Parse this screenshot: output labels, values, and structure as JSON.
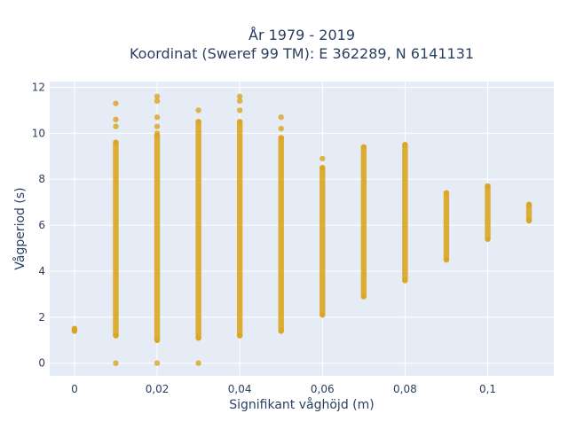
{
  "chart_data": {
    "type": "scatter",
    "title_lines": [
      "År 1979 - 2019",
      "Koordinat (Sweref 99 TM): E 362289, N 6141131"
    ],
    "xlabel": "Signifikant våghöjd (m)",
    "ylabel": "Vågperiod (s)",
    "xlim": [
      -0.006,
      0.116
    ],
    "ylim": [
      -0.55,
      12.25
    ],
    "x_ticks": [
      {
        "value": 0,
        "label": "0"
      },
      {
        "value": 0.02,
        "label": "0,02"
      },
      {
        "value": 0.04,
        "label": "0,04"
      },
      {
        "value": 0.06,
        "label": "0,06"
      },
      {
        "value": 0.08,
        "label": "0,08"
      },
      {
        "value": 0.1,
        "label": "0,1"
      }
    ],
    "y_ticks": [
      {
        "value": 0,
        "label": "0"
      },
      {
        "value": 2,
        "label": "2"
      },
      {
        "value": 4,
        "label": "4"
      },
      {
        "value": 6,
        "label": "6"
      },
      {
        "value": 8,
        "label": "8"
      },
      {
        "value": 10,
        "label": "10"
      },
      {
        "value": 12,
        "label": "12"
      }
    ],
    "grid": true,
    "colors": {
      "background": "#e5ecf6",
      "grid": "#ffffff",
      "marker": "#daa520"
    },
    "columns": [
      {
        "x": 0,
        "ymin": 1.4,
        "ymax": 1.5,
        "outliers": []
      },
      {
        "x": 0.01,
        "ymin": 1.2,
        "ymax": 9.6,
        "outliers": [
          0,
          10.3,
          10.6,
          11.3
        ]
      },
      {
        "x": 0.02,
        "ymin": 1.0,
        "ymax": 9.9,
        "outliers": [
          0,
          10.0,
          10.3,
          10.7,
          11.4,
          11.6
        ]
      },
      {
        "x": 0.03,
        "ymin": 1.1,
        "ymax": 10.5,
        "outliers": [
          0,
          11.0
        ]
      },
      {
        "x": 0.04,
        "ymin": 1.2,
        "ymax": 10.5,
        "outliers": [
          11.0,
          11.4,
          11.6
        ]
      },
      {
        "x": 0.05,
        "ymin": 1.4,
        "ymax": 9.8,
        "outliers": [
          10.2,
          10.7
        ]
      },
      {
        "x": 0.06,
        "ymin": 2.1,
        "ymax": 8.5,
        "outliers": [
          8.9
        ]
      },
      {
        "x": 0.07,
        "ymin": 2.9,
        "ymax": 9.4,
        "outliers": []
      },
      {
        "x": 0.08,
        "ymin": 3.6,
        "ymax": 9.5,
        "outliers": []
      },
      {
        "x": 0.09,
        "ymin": 4.5,
        "ymax": 7.4,
        "outliers": []
      },
      {
        "x": 0.1,
        "ymin": 5.4,
        "ymax": 7.7,
        "outliers": []
      },
      {
        "x": 0.11,
        "ymin": 6.2,
        "ymax": 6.9,
        "outliers": []
      }
    ]
  }
}
